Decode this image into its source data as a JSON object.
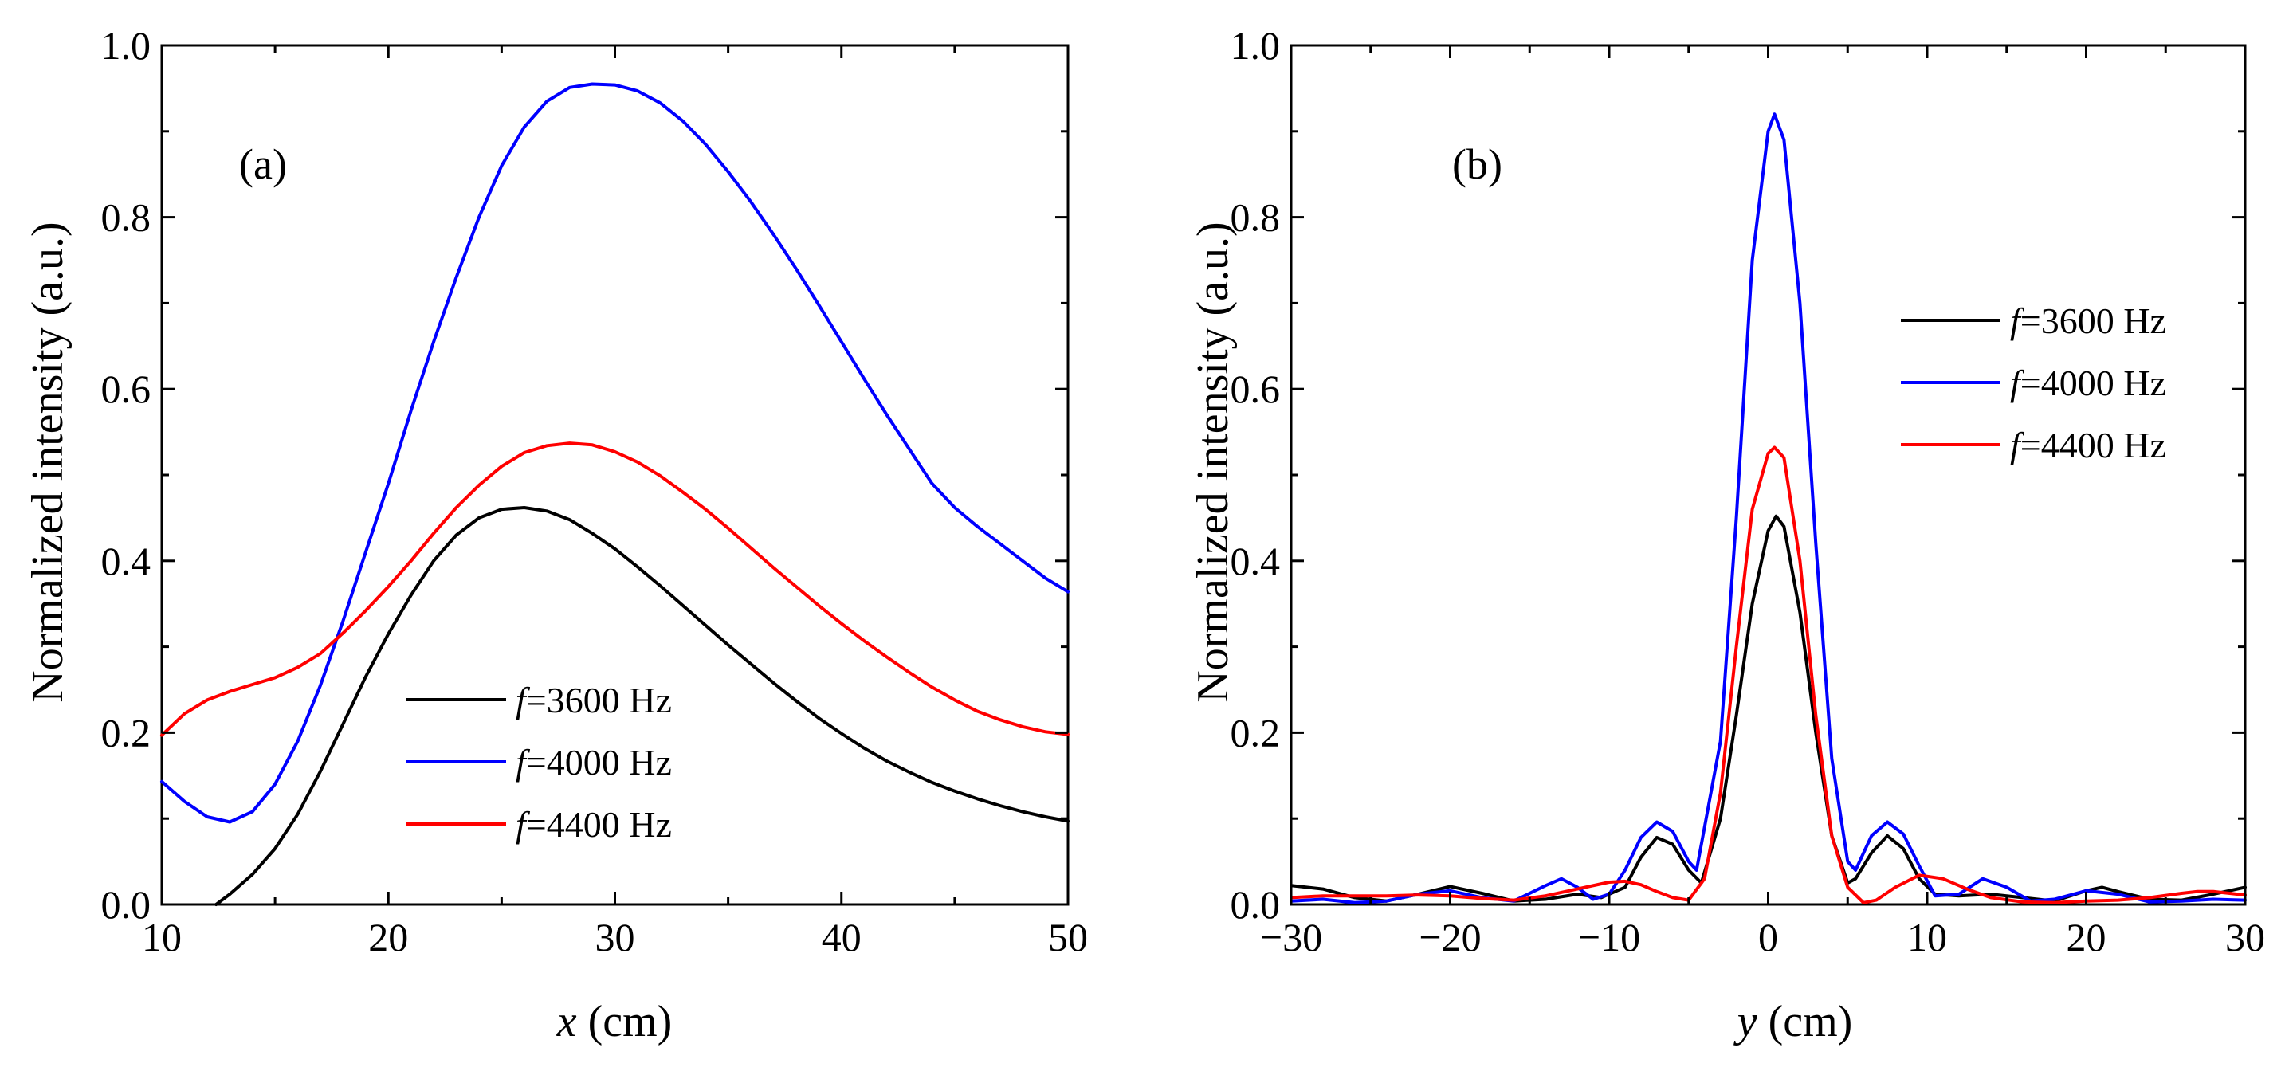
{
  "chart_data": [
    {
      "panel_label": "(a)",
      "type": "line",
      "xlabel_var": "x",
      "xlabel_unit": " (cm)",
      "ylabel": "Normalized intensity (a.u.)",
      "xlim": [
        10,
        50
      ],
      "ylim": [
        0,
        1.0
      ],
      "xticks": [
        10,
        20,
        30,
        40,
        50
      ],
      "xtick_labels": [
        "10",
        "20",
        "30",
        "40",
        "50"
      ],
      "yticks": [
        0,
        0.2,
        0.4,
        0.6,
        0.8,
        1.0
      ],
      "ytick_labels": [
        "0.0",
        "0.2",
        "0.4",
        "0.6",
        "0.8",
        "1.0"
      ],
      "legend_position": "lower-middle",
      "grid": false,
      "series": [
        {
          "name_var": "f",
          "name_rest": "=3600 Hz",
          "color": "#000000",
          "x": [
            12.4,
            13,
            14,
            15,
            16,
            17,
            18,
            19,
            20,
            21,
            22,
            23,
            24,
            25,
            26,
            27,
            28,
            29,
            30,
            31,
            32,
            33,
            34,
            35,
            36,
            37,
            38,
            39,
            40,
            41,
            42,
            43,
            44,
            45,
            46,
            47,
            48,
            49,
            50
          ],
          "y": [
            0,
            0.012,
            0.035,
            0.065,
            0.105,
            0.155,
            0.21,
            0.265,
            0.315,
            0.36,
            0.4,
            0.43,
            0.45,
            0.46,
            0.462,
            0.458,
            0.448,
            0.432,
            0.414,
            0.393,
            0.371,
            0.348,
            0.325,
            0.302,
            0.28,
            0.258,
            0.237,
            0.217,
            0.199,
            0.182,
            0.167,
            0.154,
            0.142,
            0.132,
            0.123,
            0.115,
            0.108,
            0.102,
            0.097
          ]
        },
        {
          "name_var": "f",
          "name_rest": "=4000 Hz",
          "color": "#0000ff",
          "x": [
            10,
            11,
            12,
            13,
            14,
            15,
            16,
            17,
            18,
            19,
            20,
            21,
            22,
            23,
            24,
            25,
            26,
            27,
            28,
            29,
            30,
            31,
            32,
            33,
            34,
            35,
            36,
            37,
            38,
            39,
            40,
            41,
            42,
            43,
            44,
            45,
            46,
            47,
            48,
            49,
            50
          ],
          "y": [
            0.143,
            0.12,
            0.102,
            0.096,
            0.108,
            0.14,
            0.19,
            0.255,
            0.33,
            0.41,
            0.49,
            0.575,
            0.655,
            0.73,
            0.8,
            0.86,
            0.905,
            0.935,
            0.951,
            0.955,
            0.954,
            0.947,
            0.933,
            0.912,
            0.885,
            0.853,
            0.818,
            0.78,
            0.74,
            0.698,
            0.655,
            0.612,
            0.57,
            0.53,
            0.49,
            0.462,
            0.44,
            0.42,
            0.4,
            0.38,
            0.364
          ]
        },
        {
          "name_var": "f",
          "name_rest": "=4400 Hz",
          "color": "#ff0000",
          "x": [
            10,
            11,
            12,
            13,
            14,
            15,
            16,
            17,
            18,
            19,
            20,
            21,
            22,
            23,
            24,
            25,
            26,
            27,
            28,
            29,
            30,
            31,
            32,
            33,
            34,
            35,
            36,
            37,
            38,
            39,
            40,
            41,
            42,
            43,
            44,
            45,
            46,
            47,
            48,
            49,
            50
          ],
          "y": [
            0.197,
            0.222,
            0.238,
            0.248,
            0.256,
            0.264,
            0.276,
            0.292,
            0.316,
            0.342,
            0.37,
            0.4,
            0.432,
            0.462,
            0.488,
            0.51,
            0.526,
            0.534,
            0.537,
            0.535,
            0.527,
            0.515,
            0.499,
            0.48,
            0.46,
            0.438,
            0.415,
            0.392,
            0.37,
            0.348,
            0.327,
            0.307,
            0.288,
            0.27,
            0.253,
            0.238,
            0.225,
            0.215,
            0.207,
            0.201,
            0.198
          ]
        }
      ]
    },
    {
      "panel_label": "(b)",
      "type": "line",
      "xlabel_var": "y",
      "xlabel_unit": " (cm)",
      "ylabel": "Normalized intensity (a.u.)",
      "xlim": [
        -30,
        30
      ],
      "ylim": [
        0,
        1.0
      ],
      "xticks": [
        -30,
        -20,
        -10,
        0,
        10,
        20,
        30
      ],
      "xtick_labels": [
        "−30",
        "−20",
        "−10",
        "0",
        "10",
        "20",
        "30"
      ],
      "yticks": [
        0,
        0.2,
        0.4,
        0.6,
        0.8,
        1.0
      ],
      "ytick_labels": [
        "0.0",
        "0.2",
        "0.4",
        "0.6",
        "0.8",
        "1.0"
      ],
      "legend_position": "upper-right",
      "grid": false,
      "series": [
        {
          "name_var": "f",
          "name_rest": "=3600 Hz",
          "color": "#000000",
          "x": [
            -30,
            -28,
            -26,
            -24,
            -22,
            -20,
            -18,
            -16,
            -14,
            -12,
            -10.5,
            -9,
            -8,
            -7,
            -6,
            -5,
            -4.2,
            -3,
            -2,
            -1,
            0,
            0.5,
            1,
            2,
            3,
            4,
            5,
            5.5,
            6.5,
            7.5,
            8.5,
            9.5,
            10.5,
            12,
            14,
            16,
            18,
            20,
            21,
            22,
            24,
            26,
            28,
            30
          ],
          "y": [
            0.022,
            0.018,
            0.008,
            0.004,
            0.012,
            0.021,
            0.013,
            0.004,
            0.006,
            0.012,
            0.008,
            0.02,
            0.055,
            0.078,
            0.07,
            0.04,
            0.025,
            0.1,
            0.22,
            0.35,
            0.435,
            0.452,
            0.44,
            0.34,
            0.2,
            0.08,
            0.025,
            0.03,
            0.06,
            0.08,
            0.065,
            0.03,
            0.012,
            0.01,
            0.012,
            0.008,
            0.004,
            0.016,
            0.02,
            0.015,
            0.006,
            0.005,
            0.012,
            0.02
          ]
        },
        {
          "name_var": "f",
          "name_rest": "=4000 Hz",
          "color": "#0000ff",
          "x": [
            -30,
            -28,
            -26,
            -24,
            -22,
            -20,
            -18,
            -16,
            -14,
            -13,
            -12,
            -11,
            -10,
            -9,
            -8,
            -7,
            -6,
            -5,
            -4.5,
            -3,
            -2,
            -1,
            0,
            0.4,
            1,
            2,
            3,
            4,
            5,
            5.5,
            6.5,
            7.5,
            8.5,
            9.5,
            10.5,
            12,
            13.5,
            15,
            16.5,
            18,
            20,
            22,
            24,
            26,
            28,
            30
          ],
          "y": [
            0.004,
            0.006,
            0.002,
            0.004,
            0.012,
            0.016,
            0.008,
            0.004,
            0.022,
            0.03,
            0.02,
            0.006,
            0.012,
            0.04,
            0.078,
            0.096,
            0.085,
            0.05,
            0.04,
            0.19,
            0.45,
            0.75,
            0.9,
            0.92,
            0.89,
            0.7,
            0.42,
            0.17,
            0.05,
            0.04,
            0.08,
            0.096,
            0.082,
            0.045,
            0.01,
            0.012,
            0.03,
            0.02,
            0.004,
            0.006,
            0.016,
            0.012,
            0.003,
            0.004,
            0.006,
            0.005
          ]
        },
        {
          "name_var": "f",
          "name_rest": "=4400 Hz",
          "color": "#ff0000",
          "x": [
            -30,
            -28,
            -26,
            -24,
            -22,
            -20,
            -18,
            -16,
            -14,
            -12,
            -10,
            -9,
            -8,
            -7,
            -6,
            -5,
            -4,
            -3,
            -2,
            -1,
            0,
            0.4,
            1,
            2,
            3,
            4,
            5,
            6,
            6.8,
            8,
            9.5,
            11,
            12.5,
            14,
            16,
            18,
            20,
            22,
            24,
            26,
            27,
            28,
            30
          ],
          "y": [
            0.008,
            0.01,
            0.01,
            0.01,
            0.011,
            0.01,
            0.007,
            0.005,
            0.01,
            0.018,
            0.026,
            0.027,
            0.023,
            0.015,
            0.008,
            0.005,
            0.03,
            0.13,
            0.3,
            0.46,
            0.525,
            0.532,
            0.52,
            0.4,
            0.22,
            0.08,
            0.02,
            0.002,
            0.005,
            0.02,
            0.034,
            0.03,
            0.018,
            0.008,
            0.003,
            0.002,
            0.004,
            0.005,
            0.008,
            0.013,
            0.015,
            0.015,
            0.011
          ]
        }
      ]
    }
  ]
}
